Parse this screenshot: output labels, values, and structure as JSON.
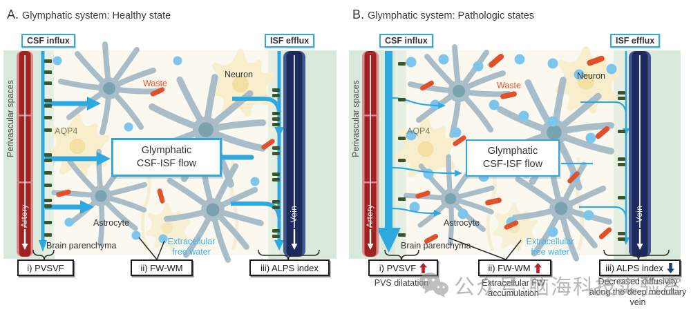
{
  "colors": {
    "accent_blue": "#2ea9e0",
    "artery_red": "#9e2222",
    "artery_pink": "#df8c8c",
    "vein_navy": "#1d2a5c",
    "vein_edge": "#46588f",
    "waste_orange": "#e2502b",
    "free_water_blue": "#7cc6ee",
    "aqp4_green": "#3a552c",
    "perivascular_green": "#d9e9db",
    "parenchyma_cream": "#fbf8f0",
    "increase_arrow_red": "#b51f2b",
    "decrease_arrow_navy": "#1b3f7e",
    "watermark_gray": "#8c8c8c"
  },
  "watermark": {
    "text": "公众号·脑海科技实验室"
  },
  "panels": {
    "a": {
      "letter": "A.",
      "title": "Glymphatic system: Healthy state",
      "csf_influx": "CSF influx",
      "isf_efflux": "ISF efflux",
      "perivascular_spaces": "Perivascular spaces",
      "artery": "Artery",
      "vein": "Vein",
      "aqp4": "AQP4",
      "neuron": "Neuron",
      "waste": "Waste",
      "center_l1": "Glymphatic",
      "center_l2": "CSF-ISF flow",
      "astrocyte": "Astrocyte",
      "brain_parenchyma": "Brain parenchyma",
      "free_water": "Extracellular free water",
      "metric1": "i) PVSVF",
      "metric2": "ii) FW-WM",
      "metric3": "iii) ALPS index"
    },
    "b": {
      "letter": "B.",
      "title": "Glymphatic system: Pathologic states",
      "csf_influx": "CSF influx",
      "isf_efflux": "ISF efflux",
      "perivascular_spaces": "Perivascular spaces",
      "artery": "Artery",
      "vein": "Vein",
      "aqp4": "AQP4",
      "neuron": "Neuron",
      "waste": "Waste",
      "center_l1": "Glymphatic",
      "center_l2": "CSF-ISF flow",
      "astrocyte": "Astrocyte",
      "brain_parenchyma": "Brain parenchyma",
      "free_water": "Extracellular free water",
      "metric1": "i) PVSVF",
      "metric2": "ii) FW-WM",
      "metric3": "iii) ALPS index",
      "metric1_trend": "increase",
      "metric2_trend": "increase",
      "metric3_trend": "decrease",
      "sub1": "PVS dilatation",
      "sub2": "Extracellular FW accumulation",
      "sub3": "Decreased diffusivity along the deep medullary vein"
    }
  }
}
